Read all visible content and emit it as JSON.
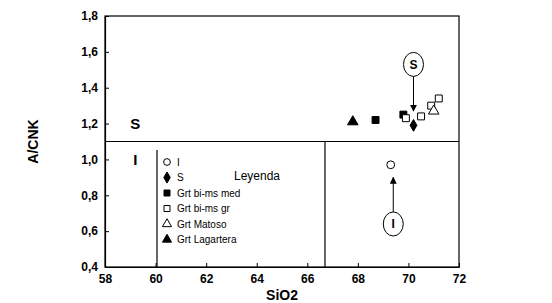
{
  "chart_data": {
    "type": "scatter",
    "x_label": "SiO2",
    "y_label": "A/CNK",
    "xlim": [
      58,
      72
    ],
    "xticks": [
      58,
      60,
      62,
      64,
      66,
      68,
      70,
      72
    ],
    "ylim": [
      0.4,
      1.8
    ],
    "yticks": [
      {
        "value": 0.4,
        "label": "0,4"
      },
      {
        "value": 0.6,
        "label": "0,6"
      },
      {
        "value": 0.8,
        "label": "0,8"
      },
      {
        "value": 1.0,
        "label": "1,0"
      },
      {
        "value": 1.2,
        "label": "1,2"
      },
      {
        "value": 1.4,
        "label": "1,4"
      },
      {
        "value": 1.6,
        "label": "1,6"
      },
      {
        "value": 1.8,
        "label": "1,8"
      }
    ],
    "grid": false,
    "legend": "lower center",
    "legend_title": "Leyenda",
    "series": [
      {
        "name": "I",
        "color": "#000000",
        "marker": "circle-open",
        "x": [
          69.3
        ],
        "values": [
          0.97
        ]
      },
      {
        "name": "S",
        "color": "#000000",
        "marker": "diamond",
        "x": [
          70.2
        ],
        "values": [
          1.19
        ]
      },
      {
        "name": "Grt bi-ms med",
        "color": "#000000",
        "marker": "square",
        "x": [
          68.7,
          69.8
        ],
        "values": [
          1.22,
          1.25
        ]
      },
      {
        "name": "Grt bi-ms gr",
        "color": "#000000",
        "marker": "square-open",
        "x": [
          69.9,
          70.5,
          70.9,
          71.2
        ],
        "values": [
          1.23,
          1.24,
          1.3,
          1.34
        ]
      },
      {
        "name": "Grt Matoso",
        "color": "#000000",
        "marker": "triangle-open",
        "x": [
          71.0
        ],
        "values": [
          1.27
        ]
      },
      {
        "name": "Grt Lagartera",
        "color": "#000000",
        "marker": "triangle",
        "x": [
          67.8
        ],
        "values": [
          1.21
        ]
      }
    ],
    "reference_lines": [
      {
        "y": 1.1
      },
      {
        "x": 66.7,
        "ymax": 1.1
      }
    ],
    "region_labels": [
      {
        "text": "S",
        "x": 59.2,
        "y": 1.2
      },
      {
        "text": "I",
        "x": 59.2,
        "y": 1.0
      }
    ],
    "annotations": [
      {
        "text": "S",
        "x": 70.2,
        "y": 1.53,
        "arrow_x": 70.2,
        "arrow_y": 1.27
      },
      {
        "text": "I",
        "x": 69.4,
        "y": 0.64,
        "arrow_x": 69.4,
        "arrow_y": 0.9
      }
    ]
  }
}
